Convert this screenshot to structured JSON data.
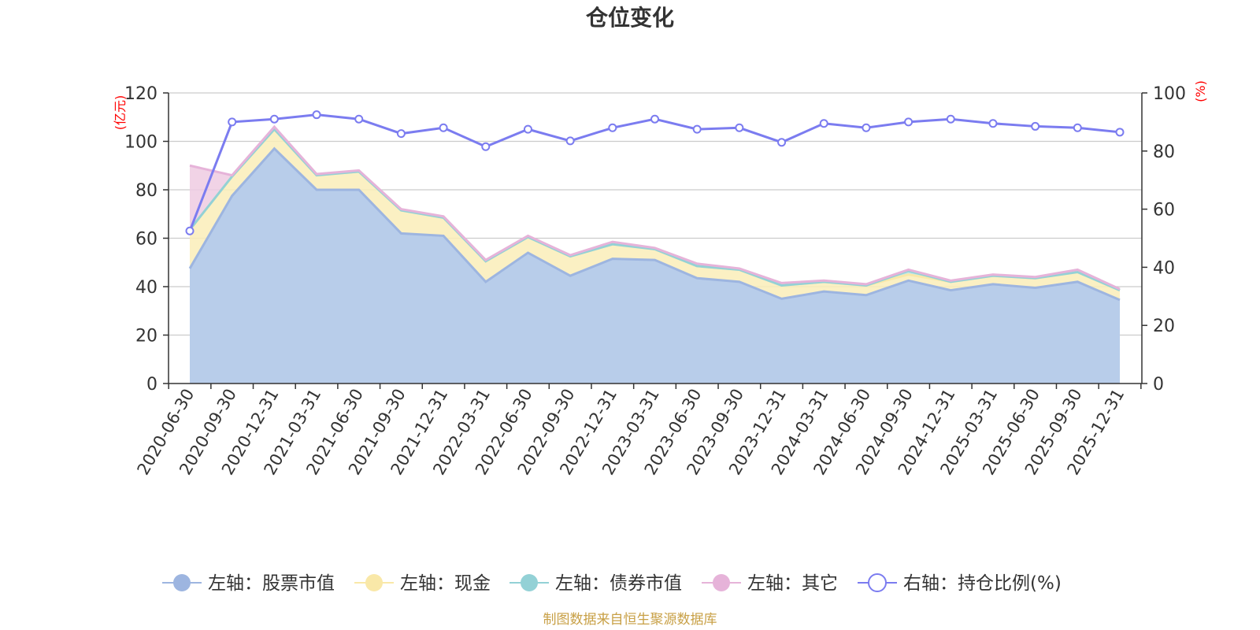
{
  "chart_data": {
    "type": "area",
    "title": "仓位变化",
    "left_axis_unit": "(亿元)",
    "right_axis_unit": "(%)",
    "unit_color": "#ff0000",
    "categories": [
      "2020-06-30",
      "2020-09-30",
      "2020-12-31",
      "2021-03-31",
      "2021-06-30",
      "2021-09-30",
      "2021-12-31",
      "2022-03-31",
      "2022-06-30",
      "2022-09-30",
      "2022-12-31",
      "2023-03-31",
      "2023-06-30",
      "2023-09-30",
      "2023-12-31",
      "2024-03-31",
      "2024-06-30",
      "2024-09-30",
      "2024-12-31",
      "2025-03-31",
      "2025-06-30",
      "2025-09-30",
      "2025-12-31"
    ],
    "left_ylim": [
      0,
      120
    ],
    "left_ticks": [
      "0",
      "20",
      "40",
      "60",
      "80",
      "100",
      "120"
    ],
    "right_ylim": [
      0,
      100
    ],
    "right_ticks": [
      "0",
      "20",
      "40",
      "60",
      "80",
      "100"
    ],
    "stacked_series": [
      {
        "name": "左轴：股票市值",
        "color": "#9db5e0",
        "fill": "#b8cdea",
        "values": [
          47.5,
          77.5,
          97,
          80,
          80,
          62,
          61,
          42,
          54,
          44.5,
          51.5,
          51,
          43.5,
          42,
          35,
          38,
          36.5,
          42.5,
          38.5,
          41,
          39.5,
          42,
          34.5
        ]
      },
      {
        "name": "左轴：现金",
        "color": "#f9e8a8",
        "fill": "#faedb8",
        "values": [
          16,
          8,
          8,
          6,
          7.5,
          9.5,
          7.5,
          8.5,
          6.5,
          8,
          6,
          4.5,
          5,
          5,
          5.5,
          4,
          4,
          2.5,
          3.5,
          3.5,
          4,
          4,
          4
        ]
      },
      {
        "name": "左轴：债券市值",
        "color": "#93d1d6",
        "fill": "#b9e2e4",
        "values": [
          0,
          0,
          0,
          0,
          0,
          0,
          0,
          0,
          0,
          0,
          0,
          0,
          0,
          0,
          0,
          0,
          0,
          1.5,
          0,
          0,
          0,
          0,
          0
        ]
      },
      {
        "name": "左轴：其它",
        "color": "#e6b3d9",
        "fill": "#efcbe2",
        "values": [
          26.5,
          0.5,
          1,
          0.5,
          0.5,
          0.5,
          0.5,
          0.5,
          0.5,
          0.5,
          1,
          0.5,
          1,
          0.5,
          1,
          0.5,
          0.5,
          0.5,
          0.5,
          0.5,
          0.5,
          1,
          0.5
        ]
      }
    ],
    "line_series": {
      "name": "右轴：持仓比例(%)",
      "color": "#7b7cf0",
      "values": [
        52.5,
        90,
        91,
        92.5,
        91,
        86,
        88,
        81.5,
        87.5,
        83.5,
        88,
        91,
        87.5,
        88,
        83,
        89.5,
        88,
        90,
        91,
        89.5,
        88.5,
        88,
        86.5
      ]
    },
    "source_note": "制图数据来自恒生聚源数据库",
    "source_color": "#c8a046"
  }
}
